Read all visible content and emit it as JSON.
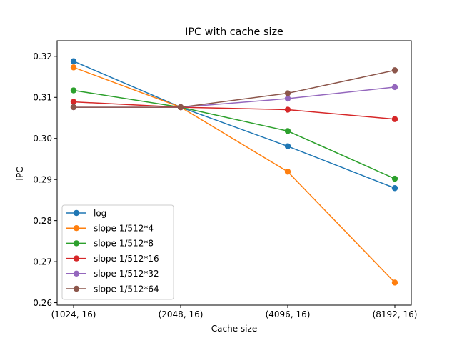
{
  "chart_data": {
    "type": "line",
    "title": "IPC with cache size",
    "xlabel": "Cache size",
    "ylabel": "IPC",
    "categories": [
      "(1024, 16)",
      "(2048, 16)",
      "(4096, 16)",
      "(8192, 16)"
    ],
    "ylim": [
      0.2594,
      0.3238
    ],
    "yticks": [
      0.26,
      0.27,
      0.28,
      0.29,
      0.3,
      0.31,
      0.32
    ],
    "ytick_labels": [
      "0.26",
      "0.27",
      "0.28",
      "0.29",
      "0.30",
      "0.31",
      "0.32"
    ],
    "grid": false,
    "legend_position": "lower-left",
    "series": [
      {
        "name": "log",
        "color": "#1f77b4",
        "values": [
          0.3188,
          0.3076,
          0.2981,
          0.2879
        ]
      },
      {
        "name": "slope 1/512*4",
        "color": "#ff7f0e",
        "values": [
          0.3173,
          0.3076,
          0.2919,
          0.2649
        ]
      },
      {
        "name": "slope 1/512*8",
        "color": "#2ca02c",
        "values": [
          0.3117,
          0.3076,
          0.3018,
          0.2902
        ]
      },
      {
        "name": "slope 1/512*16",
        "color": "#d62728",
        "values": [
          0.3089,
          0.3076,
          0.307,
          0.3047
        ]
      },
      {
        "name": "slope 1/512*32",
        "color": "#9467bd",
        "values": [
          0.3076,
          0.3076,
          0.3097,
          0.3125
        ]
      },
      {
        "name": "slope 1/512*64",
        "color": "#8c564b",
        "values": [
          0.3076,
          0.3076,
          0.311,
          0.3166
        ]
      }
    ]
  }
}
